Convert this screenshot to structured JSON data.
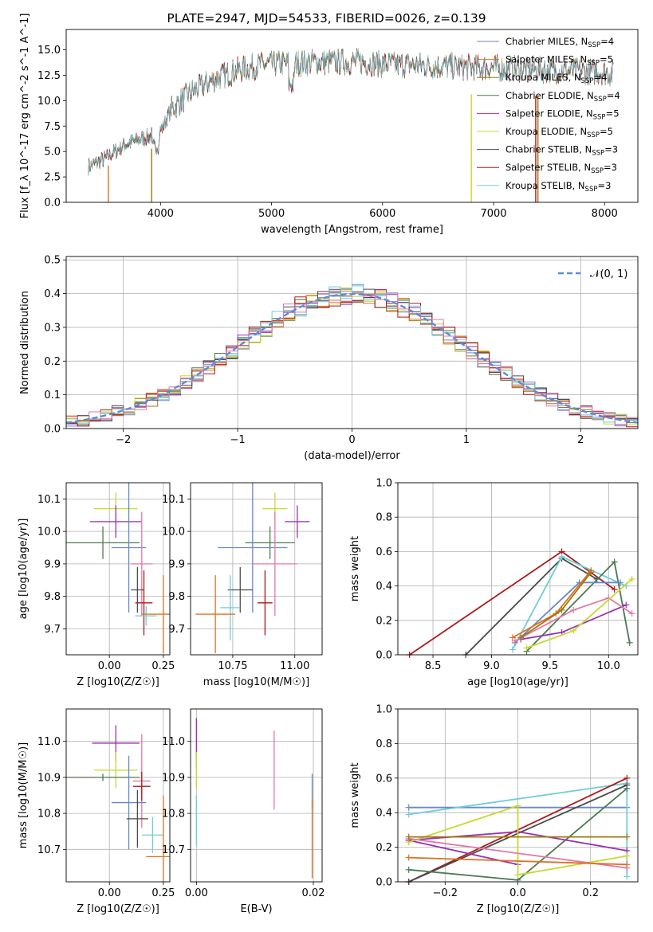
{
  "figure_title": "PLATE=2947, MJD=54533, FIBERID=0026, z=0.139",
  "colors": {
    "cm": "#6688cc",
    "sm": "#e07020",
    "km": "#a07810",
    "ce": "#4a7a50",
    "se": "#9a30b0",
    "ke": "#c8d830",
    "cs": "#4a4a4a",
    "ss": "#b01818",
    "ks": "#70ccd8",
    "pink": "#e07aa8",
    "gaussian": "#5b8bd8"
  },
  "chart_data": [
    {
      "id": "spectrum",
      "type": "line",
      "xlabel": "wavelength [Angstrom, rest frame]",
      "ylabel": "Flux [f_λ 10^-17 erg cm^-2 s^-1 A^-1]",
      "xlim": [
        3150,
        8300
      ],
      "ylim": [
        0,
        17
      ],
      "xticks": [
        4000,
        5000,
        6000,
        7000,
        8000
      ],
      "yticks": [
        0.0,
        2.5,
        5.0,
        7.5,
        10.0,
        12.5,
        15.0
      ],
      "legend_position": "right",
      "legend": [
        {
          "label": "Chabrier MILES, N",
          "sub": "SSP",
          "suffix": "=4",
          "color": "cm"
        },
        {
          "label": "Salpeter MILES, N",
          "sub": "SSP",
          "suffix": "=5",
          "color": "sm"
        },
        {
          "label": "Kroupa MILES, N",
          "sub": "SSP",
          "suffix": "=4",
          "color": "km"
        },
        {
          "label": "Chabrier ELODIE, N",
          "sub": "SSP",
          "suffix": "=4",
          "color": "ce"
        },
        {
          "label": "Salpeter ELODIE, N",
          "sub": "SSP",
          "suffix": "=5",
          "color": "se"
        },
        {
          "label": "Kroupa ELODIE, N",
          "sub": "SSP",
          "suffix": "=5",
          "color": "ke"
        },
        {
          "label": "Chabrier STELIB, N",
          "sub": "SSP",
          "suffix": "=3",
          "color": "cs"
        },
        {
          "label": "Salpeter STELIB, N",
          "sub": "SSP",
          "suffix": "=3",
          "color": "ss"
        },
        {
          "label": "Kroupa STELIB, N",
          "sub": "SSP",
          "suffix": "=3",
          "color": "ks"
        }
      ],
      "continuum": [
        [
          3350,
          3.5
        ],
        [
          3500,
          4.3
        ],
        [
          3700,
          5.8
        ],
        [
          3900,
          6.5
        ],
        [
          4000,
          7.0
        ],
        [
          4100,
          9.2
        ],
        [
          4300,
          11.0
        ],
        [
          4500,
          12.2
        ],
        [
          4700,
          13.0
        ],
        [
          4900,
          13.5
        ],
        [
          5200,
          13.7
        ],
        [
          5500,
          13.8
        ],
        [
          5800,
          13.8
        ],
        [
          6000,
          13.6
        ],
        [
          6500,
          13.4
        ],
        [
          7000,
          13.2
        ],
        [
          7500,
          13.0
        ],
        [
          8000,
          12.8
        ],
        [
          8080,
          12.7
        ]
      ],
      "dropouts": [
        {
          "x": 3530,
          "color": "sm"
        },
        {
          "x": 3920,
          "color": "km"
        },
        {
          "x": 6800,
          "color": "ke"
        },
        {
          "x": 7380,
          "color": "ss"
        },
        {
          "x": 7400,
          "color": "km"
        }
      ]
    },
    {
      "id": "residual_hist",
      "type": "bar",
      "xlabel": "(data-model)/error",
      "ylabel": "Normed distribution",
      "xlim": [
        -2.5,
        2.5
      ],
      "ylim": [
        0,
        0.51
      ],
      "xticks": [
        -2,
        -1,
        0,
        1,
        2
      ],
      "yticks": [
        0.0,
        0.1,
        0.2,
        0.3,
        0.4,
        0.5
      ],
      "legend": {
        "label": "𝒩(0, 1)"
      },
      "bins": {
        "start": -2.5,
        "width": 0.1,
        "count": 50
      }
    },
    {
      "id": "age_vs_Z",
      "type": "scatter",
      "xlabel": "Z [log10(Z/Z☉)]",
      "ylabel": "age  [log10(age/yr)]",
      "xlim": [
        -0.2,
        0.28
      ],
      "ylim": [
        9.62,
        10.15
      ],
      "xticks": [
        0.0,
        0.25
      ],
      "yticks": [
        9.7,
        9.8,
        9.9,
        10.0,
        10.1
      ],
      "points": [
        {
          "x": 0.03,
          "y": 10.07,
          "xerr": 0.1,
          "yerr": 0.05,
          "color": "ke"
        },
        {
          "x": 0.03,
          "y": 10.03,
          "xerr": 0.12,
          "yerr": 0.05,
          "color": "se"
        },
        {
          "x": -0.03,
          "y": 9.965,
          "xerr": 0.17,
          "yerr": 0.05,
          "color": "ce"
        },
        {
          "x": 0.09,
          "y": 9.95,
          "xerr": 0.08,
          "yerr": 0.2,
          "color": "cm"
        },
        {
          "x": 0.15,
          "y": 9.9,
          "xerr": 0.05,
          "yerr": 0.16,
          "color": "pink"
        },
        {
          "x": 0.13,
          "y": 9.82,
          "xerr": 0.03,
          "yerr": 0.07,
          "color": "cs"
        },
        {
          "x": 0.16,
          "y": 9.78,
          "xerr": 0.04,
          "yerr": 0.1,
          "color": "ss"
        },
        {
          "x": 0.17,
          "y": 9.74,
          "xerr": 0.05,
          "yerr": 0.03,
          "color": "ks"
        },
        {
          "x": 0.25,
          "y": 9.745,
          "xerr": 0.1,
          "yerr": 0.12,
          "color": "sm"
        }
      ]
    },
    {
      "id": "age_vs_mass",
      "type": "scatter",
      "xlabel": "mass [log10(M/M☉)]",
      "ylabel": "",
      "xlim": [
        10.58,
        11.11
      ],
      "ylim": [
        9.62,
        10.15
      ],
      "xticks": [
        10.75,
        11.0
      ],
      "yticks": [
        9.7,
        9.8,
        9.9,
        10.0,
        10.1
      ],
      "points": [
        {
          "x": 10.92,
          "y": 10.07,
          "xerr": 0.05,
          "yerr": 0.05,
          "color": "ke"
        },
        {
          "x": 11.01,
          "y": 10.03,
          "xerr": 0.05,
          "yerr": 0.05,
          "color": "se"
        },
        {
          "x": 10.9,
          "y": 9.965,
          "xerr": 0.1,
          "yerr": 0.05,
          "color": "ce"
        },
        {
          "x": 10.83,
          "y": 9.95,
          "xerr": 0.14,
          "yerr": 0.2,
          "color": "cm"
        },
        {
          "x": 10.92,
          "y": 9.9,
          "xerr": 0.09,
          "yerr": 0.16,
          "color": "pink"
        },
        {
          "x": 10.78,
          "y": 9.82,
          "xerr": 0.05,
          "yerr": 0.07,
          "color": "cs"
        },
        {
          "x": 10.88,
          "y": 9.78,
          "xerr": 0.03,
          "yerr": 0.1,
          "color": "ss"
        },
        {
          "x": 10.74,
          "y": 9.765,
          "xerr": 0.04,
          "yerr": 0.1,
          "color": "ks"
        },
        {
          "x": 10.68,
          "y": 9.745,
          "xerr": 0.08,
          "yerr": 0.12,
          "color": "sm"
        }
      ]
    },
    {
      "id": "weight_vs_age",
      "type": "line",
      "xlabel": "age  [log10(age/yr)]",
      "ylabel": "mass weight",
      "xlim": [
        8.2,
        10.25
      ],
      "ylim": [
        0,
        1.0
      ],
      "xticks": [
        8.5,
        9.0,
        9.5,
        10.0
      ],
      "yticks": [
        0.0,
        0.2,
        0.4,
        0.6,
        0.8,
        1.0
      ],
      "series": [
        {
          "color": "ss",
          "points": [
            [
              8.3,
              0.0
            ],
            [
              9.6,
              0.6
            ],
            [
              10.05,
              0.38
            ]
          ]
        },
        {
          "color": "cs",
          "points": [
            [
              8.78,
              0.0
            ],
            [
              9.6,
              0.56
            ],
            [
              9.9,
              0.44
            ]
          ]
        },
        {
          "color": "ks",
          "points": [
            [
              9.18,
              0.03
            ],
            [
              9.6,
              0.57
            ],
            [
              10.15,
              0.4
            ]
          ]
        },
        {
          "color": "ce",
          "points": [
            [
              9.3,
              0.02
            ],
            [
              10.05,
              0.54
            ],
            [
              10.18,
              0.07
            ]
          ]
        },
        {
          "color": "cm",
          "points": [
            [
              9.2,
              0.07
            ],
            [
              9.75,
              0.42
            ],
            [
              10.1,
              0.42
            ]
          ]
        },
        {
          "color": "se",
          "points": [
            [
              9.25,
              0.09
            ],
            [
              9.6,
              0.13
            ],
            [
              10.15,
              0.29
            ]
          ]
        },
        {
          "color": "pink",
          "points": [
            [
              9.2,
              0.08
            ],
            [
              9.7,
              0.26
            ],
            [
              10.0,
              0.33
            ],
            [
              10.2,
              0.24
            ]
          ]
        },
        {
          "color": "ke",
          "points": [
            [
              9.3,
              0.04
            ],
            [
              9.7,
              0.14
            ],
            [
              10.2,
              0.44
            ]
          ]
        },
        {
          "color": "sm",
          "points": [
            [
              9.18,
              0.1
            ],
            [
              9.55,
              0.24
            ],
            [
              9.85,
              0.49
            ]
          ]
        },
        {
          "color": "km",
          "points": [
            [
              9.25,
              0.1
            ],
            [
              9.6,
              0.26
            ],
            [
              9.85,
              0.48
            ]
          ]
        }
      ]
    },
    {
      "id": "mass_vs_Z",
      "type": "scatter",
      "xlabel": "Z [log10(Z/Z☉)]",
      "ylabel": "mass [log10(M/M☉)]",
      "xlim": [
        -0.2,
        0.28
      ],
      "ylim": [
        10.61,
        11.09
      ],
      "xticks": [
        0.0,
        0.25
      ],
      "yticks": [
        10.7,
        10.8,
        10.9,
        11.0
      ],
      "points": [
        {
          "x": 0.03,
          "y": 10.995,
          "xerr": 0.11,
          "yerr": 0.05,
          "color": "se"
        },
        {
          "x": 0.03,
          "y": 10.92,
          "xerr": 0.1,
          "yerr": 0.05,
          "color": "ke"
        },
        {
          "x": -0.03,
          "y": 10.9,
          "xerr": 0.17,
          "yerr": 0.01,
          "color": "ce"
        },
        {
          "x": 0.15,
          "y": 10.89,
          "xerr": 0.04,
          "yerr": 0.13,
          "color": "pink"
        },
        {
          "x": 0.15,
          "y": 10.875,
          "xerr": 0.04,
          "yerr": 0.04,
          "color": "ss"
        },
        {
          "x": 0.09,
          "y": 10.83,
          "xerr": 0.08,
          "yerr": 0.13,
          "color": "cm"
        },
        {
          "x": 0.13,
          "y": 10.785,
          "xerr": 0.05,
          "yerr": 0.08,
          "color": "cs"
        },
        {
          "x": 0.2,
          "y": 10.74,
          "xerr": 0.05,
          "yerr": 0.05,
          "color": "ks"
        },
        {
          "x": 0.25,
          "y": 10.68,
          "xerr": 0.08,
          "yerr": 0.17,
          "color": "sm"
        }
      ]
    },
    {
      "id": "mass_vs_EBV",
      "type": "scatter",
      "xlabel": "E(B-V)",
      "ylabel": "",
      "xlim": [
        -0.001,
        0.0215
      ],
      "ylim": [
        10.61,
        11.09
      ],
      "xticks": [
        0.0,
        0.02
      ],
      "yticks": [
        10.7,
        10.8,
        10.9,
        11.0
      ],
      "points": [
        {
          "x": 0.0,
          "y": 10.995,
          "xerr": 0.0,
          "yerr": 0.07,
          "color": "se"
        },
        {
          "x": 0.0,
          "y": 10.92,
          "xerr": 0.0,
          "yerr": 0.05,
          "color": "ke"
        },
        {
          "x": 0.0,
          "y": 10.78,
          "xerr": 0.0,
          "yerr": 0.07,
          "color": "ks"
        },
        {
          "x": 0.0133,
          "y": 10.92,
          "xerr": 0.0,
          "yerr": 0.11,
          "color": "pink"
        },
        {
          "x": 0.0198,
          "y": 10.86,
          "xerr": 0.0,
          "yerr": 0.05,
          "color": "cm"
        },
        {
          "x": 0.0198,
          "y": 10.73,
          "xerr": 0.0,
          "yerr": 0.11,
          "color": "sm"
        }
      ]
    },
    {
      "id": "weight_vs_Z",
      "type": "line",
      "xlabel": "Z [log10(Z/Z☉)]",
      "ylabel": "mass weight",
      "xlim": [
        -0.33,
        0.33
      ],
      "ylim": [
        0,
        1.0
      ],
      "xticks": [
        -0.2,
        0.0,
        0.2
      ],
      "yticks": [
        0.0,
        0.2,
        0.4,
        0.6,
        0.8,
        1.0
      ],
      "series": [
        {
          "color": "cm",
          "points": [
            [
              -0.3,
              0.43
            ],
            [
              0.3,
              0.43
            ]
          ]
        },
        {
          "color": "ks",
          "points": [
            [
              -0.3,
              0.39
            ],
            [
              0.3,
              0.57
            ],
            [
              0.3,
              0.03
            ]
          ]
        },
        {
          "color": "ss",
          "points": [
            [
              -0.3,
              0.0
            ],
            [
              0.3,
              0.6
            ]
          ]
        },
        {
          "color": "cs",
          "points": [
            [
              -0.3,
              0.0
            ],
            [
              0.3,
              0.56
            ]
          ]
        },
        {
          "color": "ce",
          "points": [
            [
              -0.3,
              0.07
            ],
            [
              0.0,
              0.01
            ],
            [
              0.3,
              0.54
            ]
          ]
        },
        {
          "color": "se",
          "points": [
            [
              -0.3,
              0.24
            ],
            [
              0.0,
              0.29
            ],
            [
              0.3,
              0.18
            ]
          ]
        },
        {
          "color": "se",
          "points": [
            [
              -0.3,
              0.24
            ],
            [
              0.0,
              0.1
            ]
          ]
        },
        {
          "color": "ke",
          "points": [
            [
              -0.3,
              0.23
            ],
            [
              0.0,
              0.44
            ],
            [
              0.0,
              0.04
            ],
            [
              0.3,
              0.15
            ]
          ]
        },
        {
          "color": "pink",
          "points": [
            [
              -0.3,
              0.25
            ],
            [
              0.3,
              0.08
            ]
          ]
        },
        {
          "color": "sm",
          "points": [
            [
              -0.3,
              0.14
            ],
            [
              0.3,
              0.1
            ]
          ]
        },
        {
          "color": "km",
          "points": [
            [
              -0.3,
              0.26
            ],
            [
              0.3,
              0.26
            ]
          ]
        }
      ]
    }
  ]
}
